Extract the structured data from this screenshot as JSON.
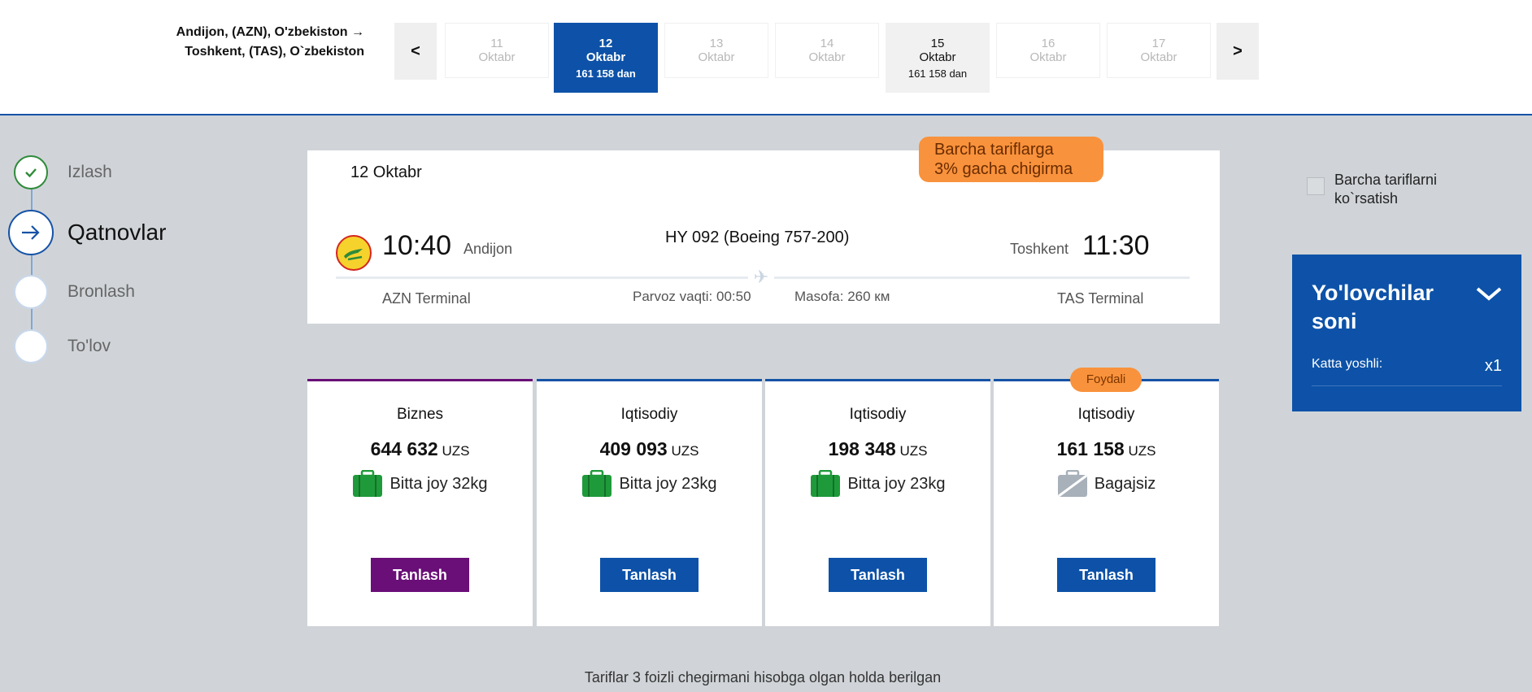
{
  "header": {
    "route_line1": "Andijon, (AZN), O'zbekiston →",
    "route_line2": "Toshkent, (TAS), O`zbekiston",
    "prev_label": "<",
    "next_label": ">",
    "dates": [
      {
        "day": "11",
        "month": "Oktabr",
        "price": ""
      },
      {
        "day": "12",
        "month": "Oktabr",
        "price": "161 158 dan"
      },
      {
        "day": "13",
        "month": "Oktabr",
        "price": ""
      },
      {
        "day": "14",
        "month": "Oktabr",
        "price": ""
      },
      {
        "day": "15",
        "month": "Oktabr",
        "price": "161 158 dan"
      },
      {
        "day": "16",
        "month": "Oktabr",
        "price": ""
      },
      {
        "day": "17",
        "month": "Oktabr",
        "price": ""
      }
    ]
  },
  "steps": [
    {
      "label": "Izlash",
      "state": "done"
    },
    {
      "label": "Qatnovlar",
      "state": "active"
    },
    {
      "label": "Bronlash",
      "state": "pending"
    },
    {
      "label": "To'lov",
      "state": "pending"
    }
  ],
  "flight": {
    "date": "12 Oktabr",
    "dep_time": "10:40",
    "dep_city": "Andijon",
    "flight_no": "HY 092 (Boeing 757-200)",
    "arr_city": "Toshkent",
    "arr_time": "11:30",
    "dep_terminal": "AZN Terminal",
    "duration": "Parvoz vaqti: 00:50",
    "distance": "Masofa: 260 км",
    "arr_terminal": "TAS Terminal"
  },
  "promo": {
    "line1": "Barcha tariflarga",
    "line2": "3% gacha chigirma"
  },
  "fares": [
    {
      "class": "Biznes",
      "amount": "644 632",
      "currency": "UZS",
      "baggage": "Bitta joy 32kg",
      "button": "Tanlash",
      "bag": "yes"
    },
    {
      "class": "Iqtisodiy",
      "amount": "409 093",
      "currency": "UZS",
      "baggage": "Bitta joy 23kg",
      "button": "Tanlash",
      "bag": "yes"
    },
    {
      "class": "Iqtisodiy",
      "amount": "198 348",
      "currency": "UZS",
      "baggage": "Bitta joy 23kg",
      "button": "Tanlash",
      "bag": "yes"
    },
    {
      "class": "Iqtisodiy",
      "amount": "161 158",
      "currency": "UZS",
      "baggage": "Bagajsiz",
      "button": "Tanlash",
      "bag": "no"
    }
  ],
  "badge": "Foydali",
  "footnote": "Tariflar 3 foizli chegirmani hisobga olgan holda berilgan",
  "show_all": {
    "line1": "Barcha tariflarni",
    "line2": "ko`rsatish"
  },
  "passengers": {
    "title": "Yo'lovchilar soni",
    "adult_label": "Katta yoshli:",
    "adult_count": "x1"
  },
  "colors": {
    "primary": "#0d52a8",
    "business": "#6a0f78",
    "accent": "#f9923c",
    "success": "#2e8b3a",
    "baggage": "#1f9a3a"
  }
}
